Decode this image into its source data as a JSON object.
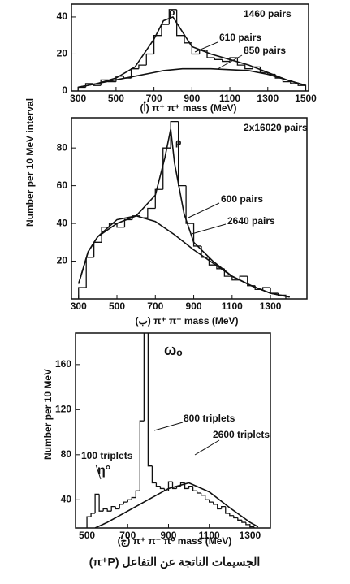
{
  "caption": "الجسيمات الناتجة عن التفاعل (π⁺P)",
  "chart_data": [
    {
      "type": "histogram",
      "xlabel": "(أ)  π⁺ π⁺ mass (MeV)",
      "ylabel": "Number per 10 MeV interval",
      "annotations": [
        "ρ",
        "1460 pairs",
        "610 pairs",
        "850 pairs"
      ],
      "xlim": [
        265,
        1515
      ],
      "ylim": [
        0,
        47
      ],
      "xticks": [
        300,
        500,
        700,
        900,
        1100,
        1300,
        1500
      ],
      "yticks": [
        0,
        20,
        40
      ],
      "bins": [
        300,
        340,
        380,
        420,
        460,
        500,
        540,
        580,
        620,
        660,
        700,
        740,
        780,
        820,
        860,
        900,
        940,
        980,
        1020,
        1060,
        1100,
        1140,
        1180,
        1220,
        1260,
        1300,
        1340,
        1380,
        1420,
        1460,
        1500
      ],
      "counts": [
        2,
        4,
        3,
        6,
        5,
        8,
        7,
        12,
        14,
        20,
        30,
        36,
        44,
        30,
        26,
        20,
        22,
        18,
        17,
        16,
        18,
        14,
        12,
        13,
        10,
        9,
        7,
        5,
        4,
        3
      ],
      "curves": [
        {
          "x": [
            300,
            400,
            500,
            600,
            700,
            750,
            800,
            850,
            900,
            1000,
            1100,
            1200,
            1300,
            1400,
            1500
          ],
          "values": [
            2,
            4,
            7,
            13,
            28,
            38,
            40,
            32,
            24,
            20,
            17,
            14,
            10,
            6,
            3
          ]
        },
        {
          "x": [
            300,
            400,
            500,
            600,
            700,
            750,
            800,
            850,
            900,
            1000,
            1100,
            1200,
            1300,
            1400,
            1500
          ],
          "values": [
            2,
            4,
            6,
            8,
            10,
            11,
            11.5,
            12,
            12,
            12,
            11.5,
            11,
            9,
            6,
            3
          ]
        }
      ]
    },
    {
      "type": "histogram",
      "xlabel": "(ب)  π⁺ π⁻ mass (MeV)",
      "annotations": [
        "2x16020 pairs",
        "ρ",
        "600 pairs",
        "2640 pairs"
      ],
      "xlim": [
        263,
        1490
      ],
      "ylim": [
        0,
        96
      ],
      "xticks": [
        300,
        500,
        700,
        900,
        1100,
        1300
      ],
      "yticks": [
        20,
        40,
        60,
        80
      ],
      "bins": [
        300,
        340,
        380,
        420,
        460,
        500,
        540,
        580,
        620,
        660,
        700,
        740,
        780,
        820,
        860,
        900,
        940,
        980,
        1020,
        1060,
        1100,
        1140,
        1180,
        1220,
        1260,
        1300,
        1340,
        1380
      ],
      "counts": [
        6,
        22,
        30,
        38,
        40,
        38,
        42,
        44,
        43,
        48,
        58,
        80,
        94,
        60,
        40,
        28,
        22,
        18,
        16,
        12,
        10,
        12,
        7,
        5,
        6,
        3,
        2
      ],
      "curves": [
        {
          "x": [
            300,
            350,
            400,
            500,
            600,
            700,
            750,
            780,
            800,
            850,
            900,
            1000,
            1100,
            1200,
            1300,
            1400
          ],
          "values": [
            8,
            25,
            33,
            40,
            44,
            55,
            75,
            90,
            72,
            45,
            30,
            20,
            12,
            7,
            3,
            1
          ]
        },
        {
          "x": [
            300,
            350,
            400,
            500,
            600,
            700,
            800,
            900,
            1000,
            1100,
            1200,
            1300,
            1400
          ],
          "values": [
            8,
            25,
            33,
            42,
            44,
            41,
            34,
            26,
            19,
            12,
            7,
            3,
            1
          ]
        }
      ]
    },
    {
      "type": "histogram",
      "xlabel": "(ج)  π⁺ π⁻ π⁰ mass (MeV)",
      "ylabel": "Number per 10 MeV",
      "annotations": [
        "ωₒ",
        "800 triplets",
        "2600 triplets",
        "100 triplets",
        "η°"
      ],
      "xlim": [
        444,
        1400
      ],
      "ylim": [
        15,
        188
      ],
      "xticks": [
        500,
        700,
        900,
        1100,
        1300
      ],
      "yticks": [
        40,
        80,
        120,
        160
      ],
      "bins": [
        500,
        520,
        540,
        560,
        580,
        600,
        620,
        640,
        660,
        680,
        700,
        720,
        740,
        760,
        780,
        800,
        820,
        840,
        860,
        880,
        900,
        920,
        940,
        960,
        980,
        1000,
        1020,
        1040,
        1060,
        1080,
        1100,
        1120,
        1140,
        1160,
        1180,
        1200,
        1220,
        1240,
        1260,
        1280,
        1300,
        1320,
        1340
      ],
      "counts": [
        25,
        28,
        45,
        30,
        32,
        30,
        34,
        32,
        36,
        38,
        40,
        42,
        48,
        110,
        190,
        70,
        55,
        52,
        50,
        48,
        56,
        50,
        52,
        55,
        50,
        52,
        48,
        46,
        44,
        40,
        38,
        36,
        32,
        34,
        28,
        26,
        24,
        22,
        20,
        18,
        16,
        14
      ],
      "curves": [
        {
          "x": [
            540,
            600,
            700,
            800,
            900,
            1000,
            1100,
            1200,
            1300,
            1340
          ],
          "values": [
            15,
            20,
            30,
            40,
            50,
            55,
            47,
            33,
            20,
            16
          ]
        }
      ]
    }
  ]
}
